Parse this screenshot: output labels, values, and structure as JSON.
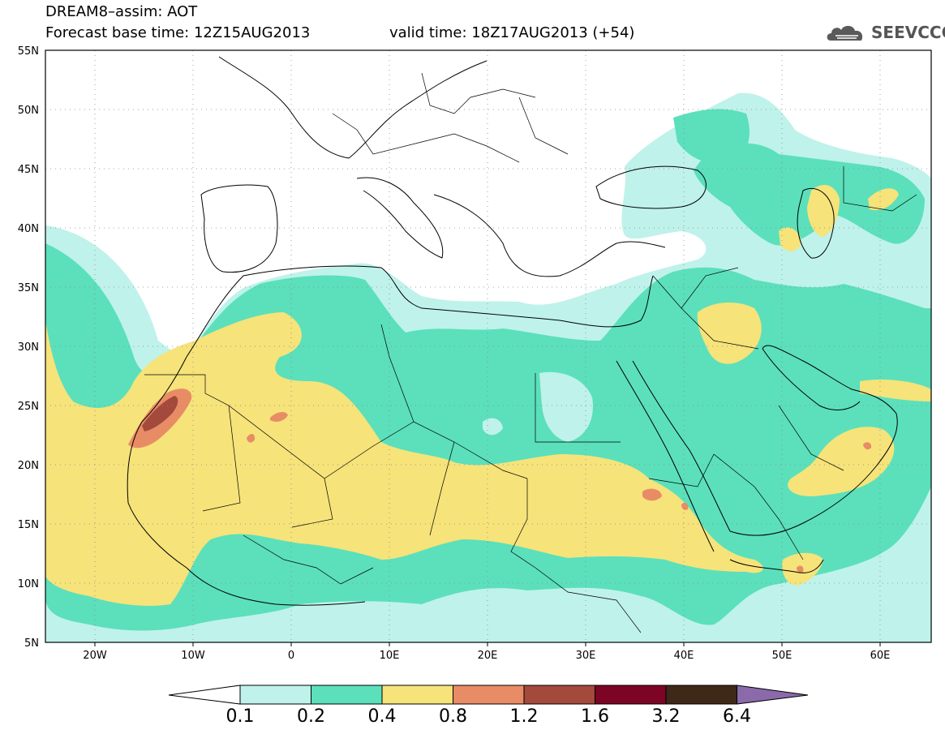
{
  "header": {
    "title": "DREAM8–assim: AOT",
    "base_time": "Forecast base time: 12Z15AUG2013",
    "valid_time": "valid time: 18Z17AUG2013 (+54)",
    "logo_text": "SEEVCCC"
  },
  "map": {
    "lon_range": [
      -25,
      65
    ],
    "lat_range": [
      5,
      55
    ],
    "lon_ticks": [
      "20W",
      "10W",
      "0",
      "10E",
      "20E",
      "30E",
      "40E",
      "50E",
      "60E"
    ],
    "lat_ticks": [
      "5N",
      "10N",
      "15N",
      "20N",
      "25N",
      "30N",
      "35N",
      "40N",
      "45N",
      "50N",
      "55N"
    ],
    "grid": "dotted",
    "colors": {
      "level_01": "#bff2ea",
      "level_02": "#5be0bb",
      "level_04": "#f6e37a",
      "level_08": "#e88c66",
      "level_12": "#a44a3c",
      "level_16": "#7c0424",
      "level_32": "#3e2818",
      "level_64": "#8a6aaa"
    }
  },
  "colorbar": {
    "labels": [
      "0.1",
      "0.2",
      "0.4",
      "0.8",
      "1.2",
      "1.6",
      "3.2",
      "6.4"
    ],
    "colors": [
      "#bff2ea",
      "#5be0bb",
      "#f6e37a",
      "#e88c66",
      "#a44a3c",
      "#7c0424",
      "#3e2818"
    ],
    "over_color": "#8a6aaa",
    "under_color": "#ffffff"
  }
}
